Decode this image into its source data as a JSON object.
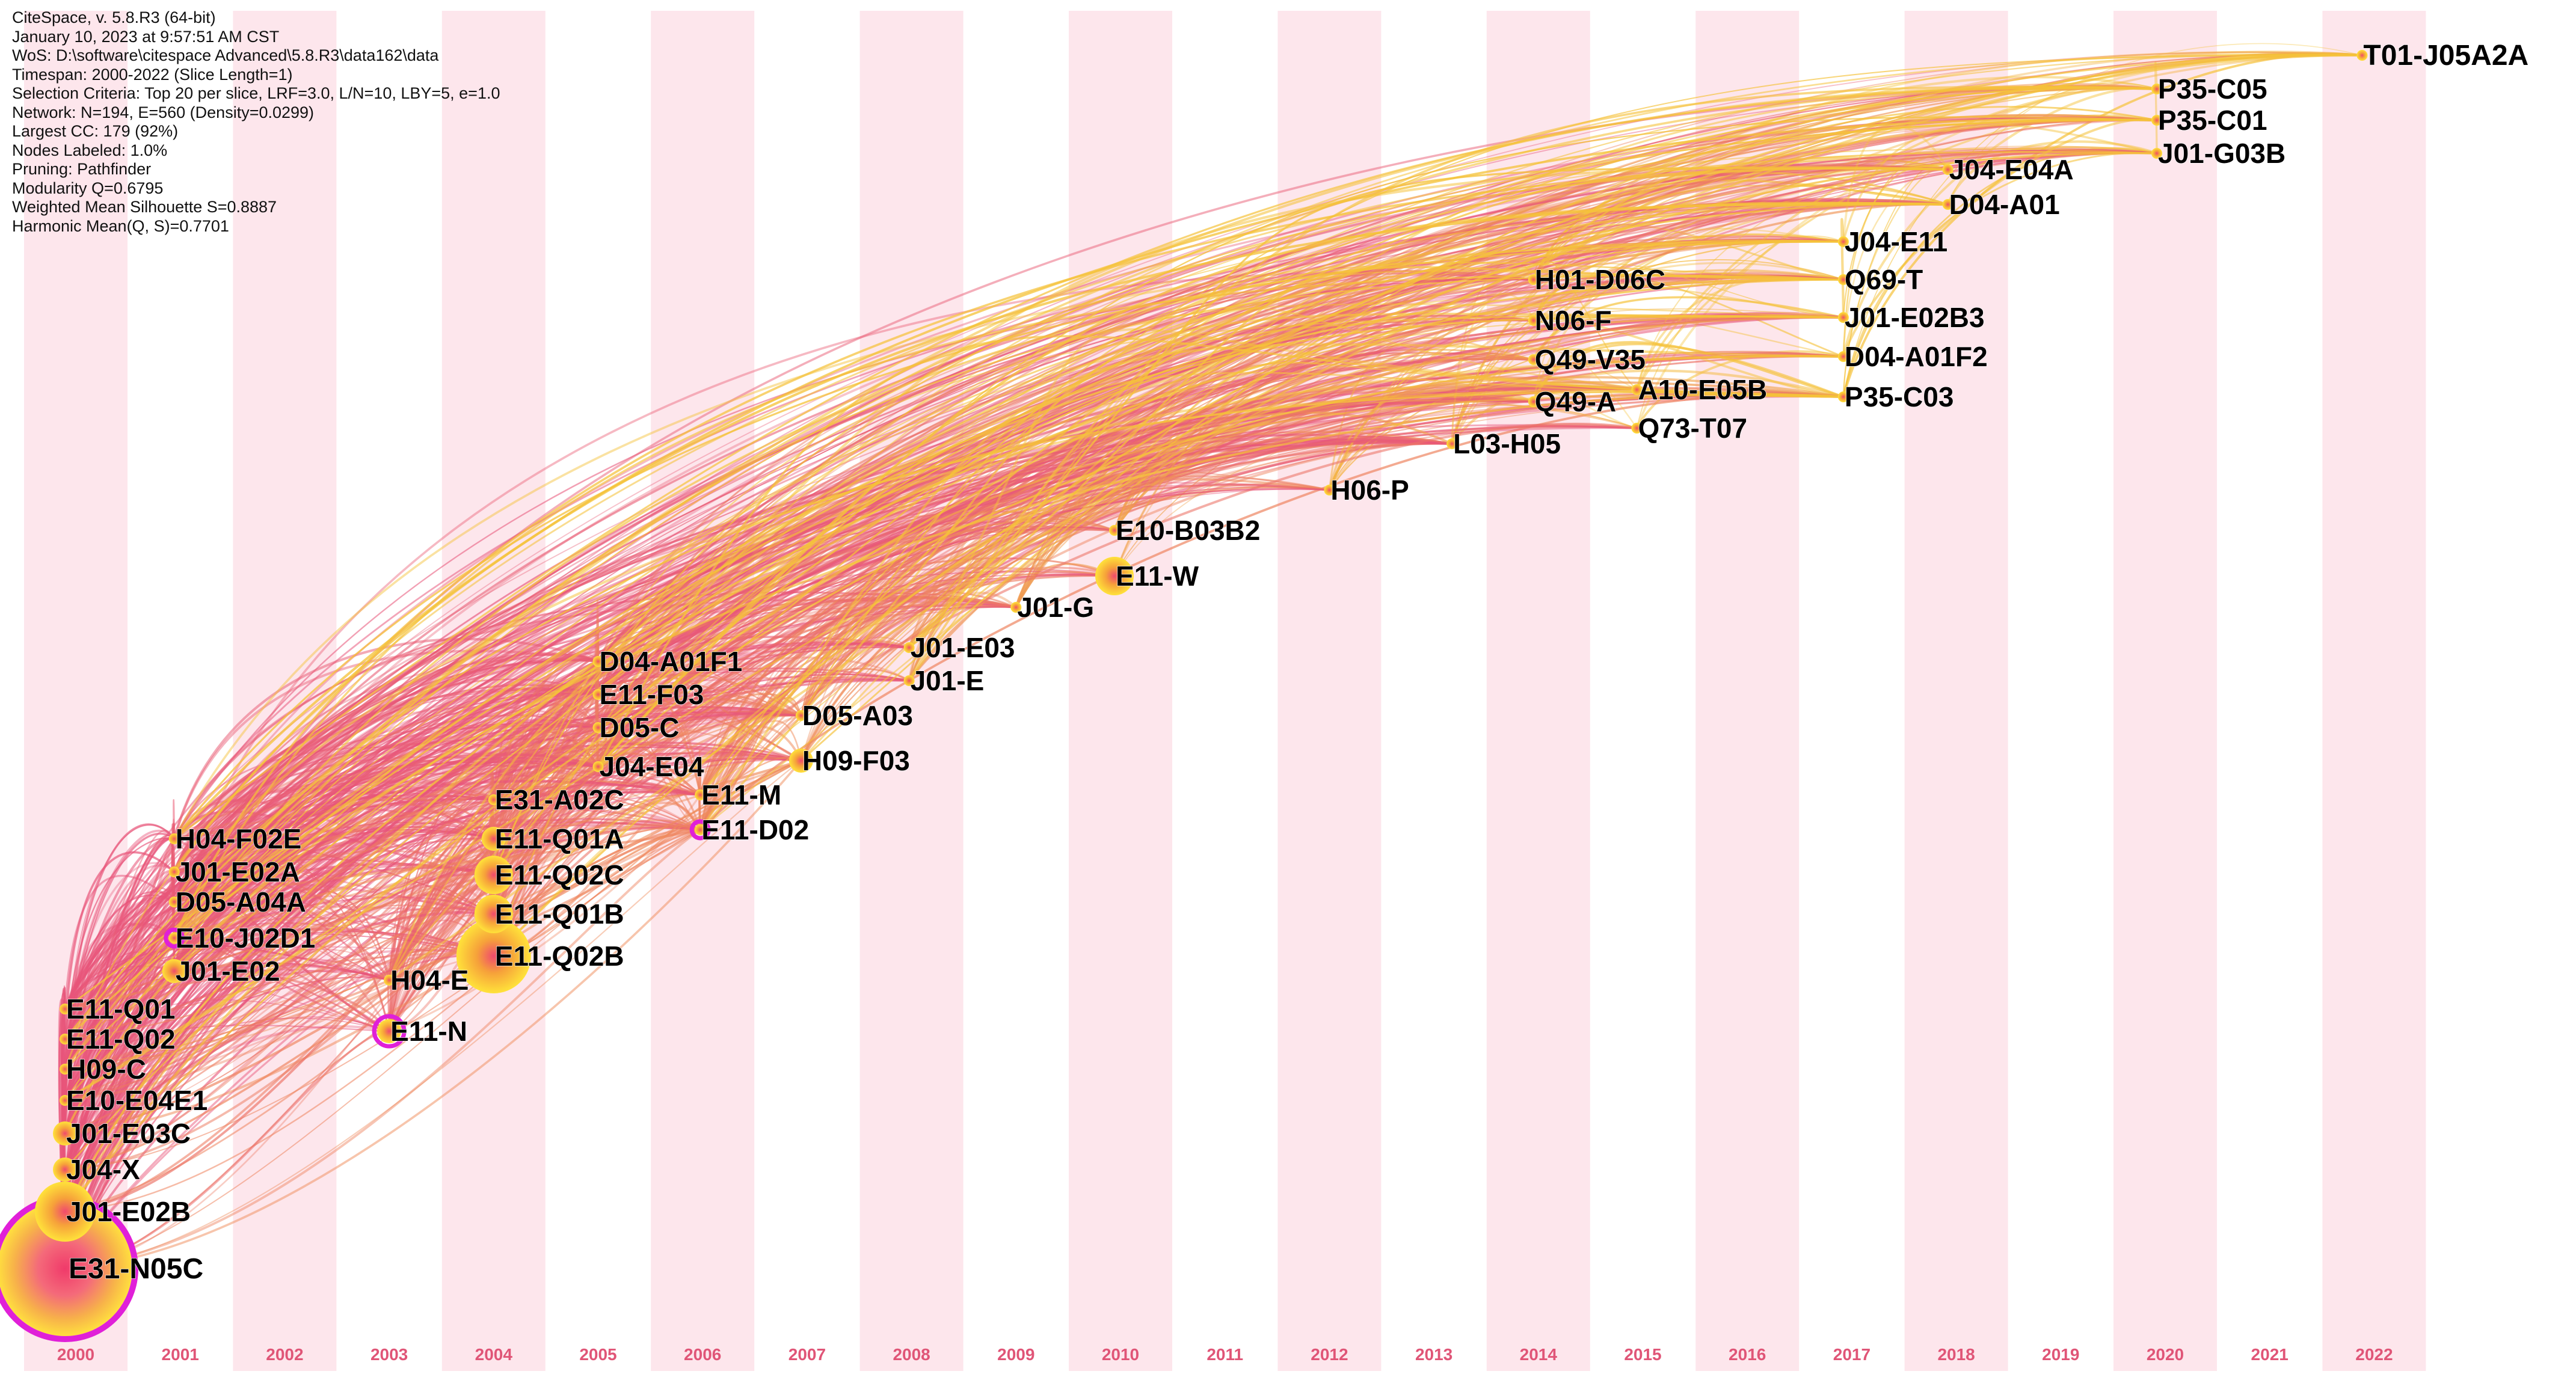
{
  "info_panel": [
    "CiteSpace, v. 5.8.R3 (64-bit)",
    "January 10, 2023 at 9:57:51 AM CST",
    "WoS: D:\\software\\citespace Advanced\\5.8.R3\\data162\\data",
    "Timespan: 2000-2022 (Slice Length=1)",
    "Selection Criteria: Top 20 per slice, LRF=3.0, L/N=10, LBY=5, e=1.0",
    "Network: N=194, E=560 (Density=0.0299)",
    "Largest CC: 179 (92%)",
    "Nodes Labeled: 1.0%",
    "Pruning: Pathfinder",
    "Modularity Q=0.6795",
    "Weighted Mean Silhouette S=0.8887",
    "Harmonic Mean(Q, S)=0.7701"
  ],
  "years": [
    "2000",
    "2001",
    "2002",
    "2003",
    "2004",
    "2005",
    "2006",
    "2007",
    "2008",
    "2009",
    "2010",
    "2011",
    "2012",
    "2013",
    "2014",
    "2015",
    "2016",
    "2017",
    "2018",
    "2019",
    "2020",
    "2021",
    "2022"
  ],
  "colors": {
    "stripe": "#fde6ec",
    "year_label": "#e05577",
    "early_link": "#e8557a",
    "late_link": "#f5c23a",
    "ring": "#e020d8"
  },
  "nodes": [
    {
      "label": "E31-N05C",
      "year": 2000,
      "row": 0,
      "size": 9,
      "ring": true
    },
    {
      "label": "J01-E02B",
      "year": 2000,
      "row": 1,
      "size": 4
    },
    {
      "label": "J04-X",
      "year": 2000,
      "row": 2,
      "size": 2
    },
    {
      "label": "J01-E03C",
      "year": 2000,
      "row": 3,
      "size": 2
    },
    {
      "label": "E10-E04E1",
      "year": 2000,
      "row": 4,
      "size": 1
    },
    {
      "label": "H09-C",
      "year": 2000,
      "row": 5,
      "size": 1
    },
    {
      "label": "E11-Q02",
      "year": 2000,
      "row": 6,
      "size": 1
    },
    {
      "label": "E11-Q01",
      "year": 2000,
      "row": 7,
      "size": 1
    },
    {
      "label": "J01-E02",
      "year": 2001,
      "row": 0,
      "size": 2
    },
    {
      "label": "E10-J02D1",
      "year": 2001,
      "row": 1,
      "size": 1,
      "ring": true
    },
    {
      "label": "D05-A04A",
      "year": 2001,
      "row": 2,
      "size": 1
    },
    {
      "label": "J01-E02A",
      "year": 2001,
      "row": 3,
      "size": 1
    },
    {
      "label": "H04-F02E",
      "year": 2001,
      "row": 4,
      "size": 1
    },
    {
      "label": "E11-N",
      "year": 2003,
      "row": 0,
      "size": 2,
      "ring": true
    },
    {
      "label": "H04-E",
      "year": 2003,
      "row": 1,
      "size": 1
    },
    {
      "label": "E11-Q02B",
      "year": 2004,
      "row": 0,
      "size": 5
    },
    {
      "label": "E11-Q01B",
      "year": 2004,
      "row": 1,
      "size": 3
    },
    {
      "label": "E11-Q02C",
      "year": 2004,
      "row": 2,
      "size": 3
    },
    {
      "label": "E11-Q01A",
      "year": 2004,
      "row": 3,
      "size": 2
    },
    {
      "label": "E31-A02C",
      "year": 2004,
      "row": 4,
      "size": 1
    },
    {
      "label": "J04-E04",
      "year": 2005,
      "row": 0,
      "size": 1
    },
    {
      "label": "D05-C",
      "year": 2005,
      "row": 1,
      "size": 1
    },
    {
      "label": "E11-F03",
      "year": 2005,
      "row": 2,
      "size": 1
    },
    {
      "label": "D04-A01F1",
      "year": 2005,
      "row": 3,
      "size": 1
    },
    {
      "label": "E11-D02",
      "year": 2006,
      "row": 0,
      "size": 1,
      "ring": true
    },
    {
      "label": "E11-M",
      "year": 2006,
      "row": 1,
      "size": 1
    },
    {
      "label": "H09-F03",
      "year": 2007,
      "row": 0,
      "size": 2
    },
    {
      "label": "D05-A03",
      "year": 2007,
      "row": 1,
      "size": 1
    },
    {
      "label": "J01-E",
      "year": 2008,
      "row": 0,
      "size": 1
    },
    {
      "label": "J01-E03",
      "year": 2008,
      "row": 1,
      "size": 1
    },
    {
      "label": "J01-G",
      "year": 2009,
      "row": 0,
      "size": 1
    },
    {
      "label": "E11-W",
      "year": 2010,
      "row": 0,
      "size": 3
    },
    {
      "label": "E10-B03B2",
      "year": 2010,
      "row": 1,
      "size": 1
    },
    {
      "label": "H06-P",
      "year": 2012,
      "row": 0,
      "size": 1
    },
    {
      "label": "L03-H05",
      "year": 2013,
      "row": 0,
      "size": 1
    },
    {
      "label": "Q49-A",
      "year": 2014,
      "row": 0,
      "size": 1
    },
    {
      "label": "Q49-V35",
      "year": 2014,
      "row": 1,
      "size": 1
    },
    {
      "label": "N06-F",
      "year": 2014,
      "row": 2,
      "size": 1
    },
    {
      "label": "H01-D06C",
      "year": 2014,
      "row": 3,
      "size": 1
    },
    {
      "label": "Q73-T07",
      "year": 2015,
      "row": 0,
      "size": 1
    },
    {
      "label": "A10-E05B",
      "year": 2015,
      "row": 1,
      "size": 1
    },
    {
      "label": "P35-C03",
      "year": 2017,
      "row": 0,
      "size": 1
    },
    {
      "label": "D04-A01F2",
      "year": 2017,
      "row": 1,
      "size": 1
    },
    {
      "label": "J01-E02B3",
      "year": 2017,
      "row": 2,
      "size": 1
    },
    {
      "label": "Q69-T",
      "year": 2017,
      "row": 3,
      "size": 1
    },
    {
      "label": "J04-E11",
      "year": 2017,
      "row": 4,
      "size": 1
    },
    {
      "label": "D04-A01",
      "year": 2018,
      "row": 0,
      "size": 1
    },
    {
      "label": "J04-E04A",
      "year": 2018,
      "row": 1,
      "size": 1
    },
    {
      "label": "J01-G03B",
      "year": 2020,
      "row": 0,
      "size": 1
    },
    {
      "label": "P35-C01",
      "year": 2020,
      "row": 1,
      "size": 1
    },
    {
      "label": "P35-C05",
      "year": 2020,
      "row": 2,
      "size": 1
    },
    {
      "label": "T01-J05A2A",
      "year": 2022,
      "row": 0,
      "size": 1
    }
  ]
}
